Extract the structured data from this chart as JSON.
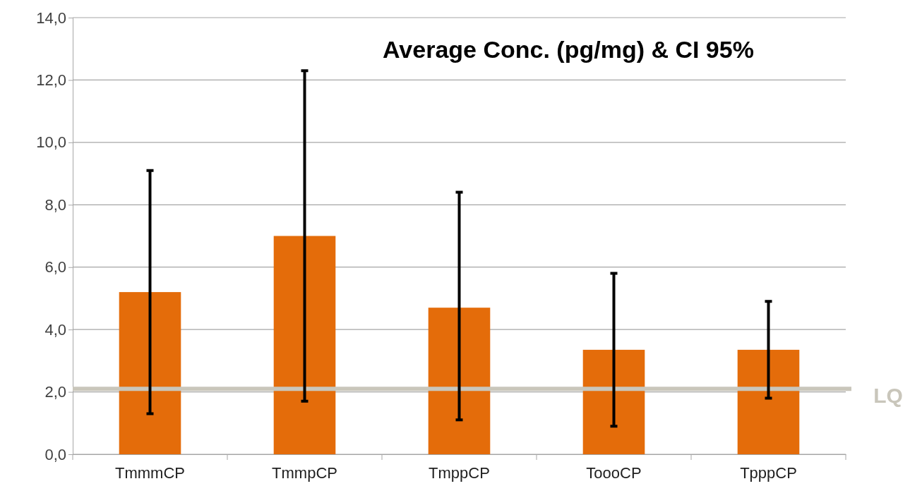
{
  "chart_data": {
    "type": "bar",
    "title": "Average Conc. (pg/mg) & CI 95%",
    "categories": [
      "TmmmCP",
      "TmmpCP",
      "TmppCP",
      "ToooCP",
      "TpppCP"
    ],
    "values": [
      5.2,
      7.0,
      4.7,
      3.35,
      3.35
    ],
    "color": "#e46c0a",
    "errors": [
      [
        1.3,
        9.1
      ],
      [
        1.7,
        12.3
      ],
      [
        1.1,
        8.4
      ],
      [
        0.9,
        5.8
      ],
      [
        1.8,
        4.9
      ]
    ],
    "ylim": [
      0,
      14
    ],
    "yticks": [
      {
        "value": 0,
        "label": "0,0"
      },
      {
        "value": 2,
        "label": "2,0"
      },
      {
        "value": 4,
        "label": "4,0"
      },
      {
        "value": 6,
        "label": "6,0"
      },
      {
        "value": 8,
        "label": "8,0"
      },
      {
        "value": 10,
        "label": "10,0"
      },
      {
        "value": 12,
        "label": "12,0"
      },
      {
        "value": 14,
        "label": "14,0"
      }
    ],
    "grid": "y",
    "ref_lines": [
      {
        "axis": "y",
        "value": 2.1,
        "label": "LQ",
        "color": "#c9c6bb"
      }
    ]
  }
}
